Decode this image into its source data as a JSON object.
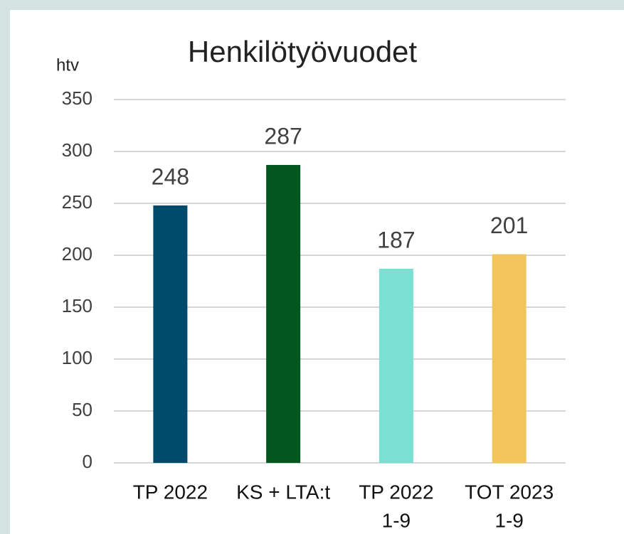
{
  "chart_data": {
    "type": "bar",
    "title": "Henkilötyövuodet",
    "y_label": "htv",
    "categories": [
      [
        "TP 2022"
      ],
      [
        "KS + LTA:t"
      ],
      [
        "TP 2022",
        "1-9"
      ],
      [
        "TOT 2023",
        "1-9"
      ]
    ],
    "values": [
      248,
      287,
      187,
      201
    ],
    "colors": [
      "#004b6b",
      "#04561f",
      "#7bdfd1",
      "#f1c55b"
    ],
    "ylim": [
      0,
      350
    ],
    "yticks": [
      0,
      50,
      100,
      150,
      200,
      250,
      300,
      350
    ],
    "grid": true
  }
}
